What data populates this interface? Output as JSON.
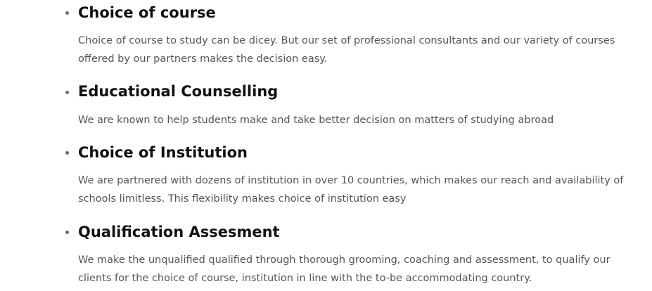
{
  "services": [
    {
      "title": "Choice of course",
      "description": "Choice of course to study can be dicey. But our set of professional consultants and our variety of courses offered by our partners makes the decision easy."
    },
    {
      "title": "Educational Counselling",
      "description": "We are known to help students make and take better decision on matters of studying abroad"
    },
    {
      "title": "Choice of Institution",
      "description": "We are partnered with dozens of institution in over 10 countries, which makes our reach and availability of schools limitless. This flexibility makes choice of institution easy"
    },
    {
      "title": "Qualification Assesment",
      "description": "We make the unqualified qualified through thorough grooming, coaching and assessment, to qualify our clients for the choice of course, institution in line with the to-be accommodating country."
    }
  ]
}
